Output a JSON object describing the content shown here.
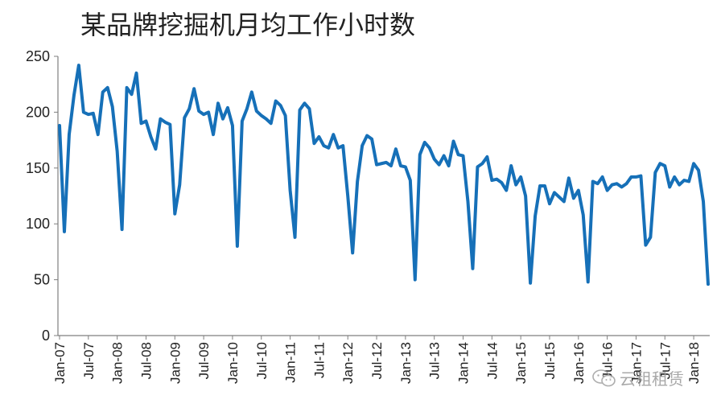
{
  "title": "某品牌挖掘机月均工作小时数",
  "watermark": {
    "text": "云租租赁",
    "icon": "wechat-icon"
  },
  "chart_data": {
    "type": "line",
    "title": "某品牌挖掘机月均工作小时数",
    "xlabel": "",
    "ylabel": "",
    "ylim": [
      0,
      250
    ],
    "yticks": [
      0,
      50,
      100,
      150,
      200,
      250
    ],
    "grid": false,
    "legend": "none",
    "line_color": "#1670b8",
    "x_start": "Jan-07",
    "x_end": "Jan-18",
    "xtick_labels": [
      "Jan-07",
      "Jul-07",
      "Jan-08",
      "Jul-08",
      "Jan-09",
      "Jul-09",
      "Jan-10",
      "Jul-10",
      "Jan-11",
      "Jul-11",
      "Jan-12",
      "Jul-12",
      "Jan-13",
      "Jul-13",
      "Jan-14",
      "Jul-14",
      "Jan-15",
      "Jul-15",
      "Jan-16",
      "Jul-16",
      "Jan-17",
      "Jul-17",
      "Jan-18"
    ],
    "series": [
      {
        "values": [
          188,
          93,
          180,
          215,
          242,
          200,
          198,
          199,
          180,
          218,
          222,
          205,
          165,
          95,
          222,
          216,
          235,
          190,
          192,
          178,
          167,
          194,
          191,
          189,
          109,
          135,
          195,
          203,
          221,
          201,
          198,
          200,
          180,
          208,
          194,
          204,
          188,
          80,
          192,
          203,
          218,
          201,
          197,
          194,
          190,
          210,
          206,
          197,
          130,
          88,
          202,
          208,
          203,
          172,
          178,
          170,
          168,
          180,
          168,
          170,
          125,
          74,
          138,
          170,
          179,
          176,
          153,
          154,
          155,
          152,
          167,
          152,
          151,
          139,
          50,
          162,
          173,
          168,
          158,
          153,
          161,
          152,
          174,
          162,
          161,
          120,
          60,
          151,
          154,
          160,
          139,
          140,
          137,
          130,
          152,
          135,
          142,
          125,
          47,
          107,
          134,
          134,
          118,
          128,
          124,
          120,
          141,
          123,
          130,
          108,
          48,
          138,
          136,
          142,
          130,
          135,
          136,
          133,
          136,
          142,
          142,
          143,
          81,
          88,
          146,
          154,
          152,
          133,
          142,
          135,
          139,
          138,
          154,
          148,
          120,
          46
        ]
      }
    ]
  }
}
